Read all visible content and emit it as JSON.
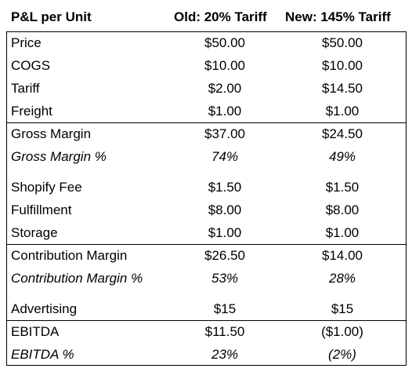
{
  "header": {
    "col0": "P&L per Unit",
    "col1": "Old: 20% Tariff",
    "col2": "New: 145% Tariff"
  },
  "rows": [
    {
      "label": "Price",
      "old": "$50.00",
      "new": "$50.00"
    },
    {
      "label": "COGS",
      "old": "$10.00",
      "new": "$10.00"
    },
    {
      "label": "Tariff",
      "old": "$2.00",
      "new": "$14.50"
    },
    {
      "label": "Freight",
      "old": "$1.00",
      "new": "$1.00"
    },
    {
      "label": "Gross Margin",
      "old": "$37.00",
      "new": "$24.50"
    },
    {
      "label": "Gross Margin %",
      "old": "74%",
      "new": "49%"
    },
    {
      "label": "Shopify Fee",
      "old": "$1.50",
      "new": "$1.50"
    },
    {
      "label": "Fulfillment",
      "old": "$8.00",
      "new": "$8.00"
    },
    {
      "label": "Storage",
      "old": "$1.00",
      "new": "$1.00"
    },
    {
      "label": "Contribution Margin",
      "old": "$26.50",
      "new": "$14.00"
    },
    {
      "label": "Contribution Margin %",
      "old": "53%",
      "new": "28%"
    },
    {
      "label": "Advertising",
      "old": "$15",
      "new": "$15"
    },
    {
      "label": "EBITDA",
      "old": "$11.50",
      "new": "($1.00)"
    },
    {
      "label": "EBITDA %",
      "old": "23%",
      "new": "(2%)"
    }
  ]
}
